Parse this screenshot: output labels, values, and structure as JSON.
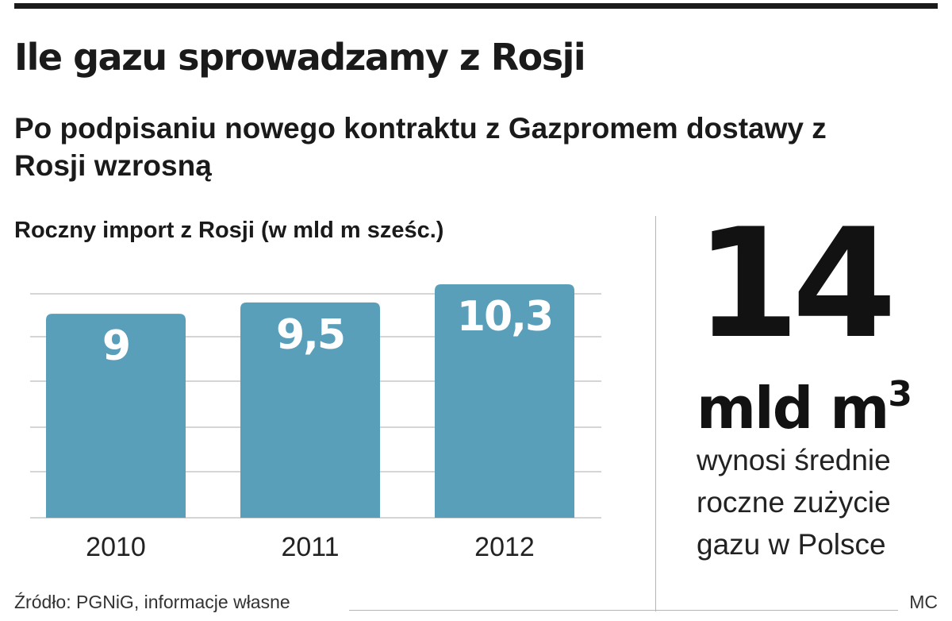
{
  "title": "Ile gazu sprowadzamy z Rosji",
  "subtitle": "Po podpisaniu nowego kontraktu z Gazpromem dostawy z Rosji wzrosną",
  "chart_heading": "Roczny import z Rosji (w mld m sześc.)",
  "chart_data": {
    "type": "bar",
    "title": "Roczny import z Rosji (w mld m sześc.)",
    "categories": [
      "2010",
      "2011",
      "2012"
    ],
    "values": [
      9,
      9.5,
      10.3
    ],
    "value_labels": [
      "9",
      "9,5",
      "10,3"
    ],
    "ylim": [
      0,
      10.3
    ],
    "grid": true,
    "bar_color": "#5a9fba",
    "label_color": "#ffffff",
    "grid_color": "#d5d5d5"
  },
  "callout": {
    "number": "14",
    "unit": "mld m",
    "unit_superscript": "3",
    "caption": "wynosi średnie roczne zużycie gazu w Polsce"
  },
  "footer": {
    "source": "Źródło: PGNiG, informacje własne",
    "author": "MC"
  },
  "colors": {
    "text": "#1a1a1a",
    "bar": "#5a9fba",
    "rule": "#1a1a1a",
    "divider": "#b5b5b5"
  }
}
